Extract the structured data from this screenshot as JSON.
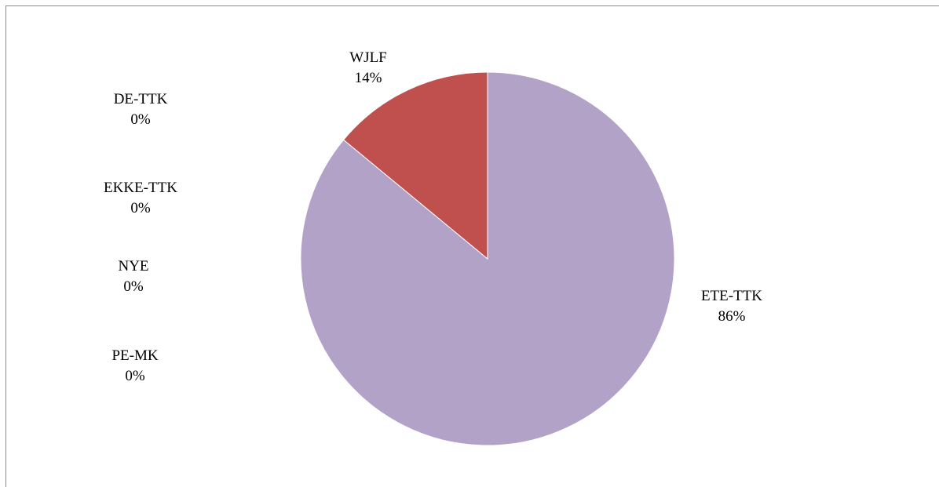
{
  "chart_data": {
    "type": "pie",
    "title": "",
    "slices": [
      {
        "label": "DE-TTK",
        "value": 0,
        "percent_label": "0%",
        "color": "#4f81bd"
      },
      {
        "label": "EKKE-TTK",
        "value": 0,
        "percent_label": "0%",
        "color": "#c0504d"
      },
      {
        "label": "NYE",
        "value": 0,
        "percent_label": "0%",
        "color": "#9bbb59"
      },
      {
        "label": "PE-MK",
        "value": 0,
        "percent_label": "0%",
        "color": "#8064a2"
      },
      {
        "label": "ETE-TTK",
        "value": 86,
        "percent_label": "86%",
        "color": "#b3a2c7"
      },
      {
        "label": "WJLF",
        "value": 14,
        "percent_label": "14%",
        "color": "#c0504d"
      }
    ],
    "legend": "none",
    "data_labels": "category and percentage"
  }
}
